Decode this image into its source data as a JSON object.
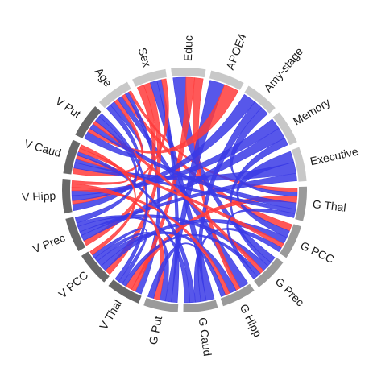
{
  "colors": {
    "positive": "#ff3b3b",
    "negative": "#3a3ae6",
    "group_demographic": "#c8c8c8",
    "group_gray_matter": "#9a9a9a",
    "group_volume": "#686868"
  },
  "sectors": [
    {
      "id": "apoe4",
      "label": "APOE4",
      "group": "demographic"
    },
    {
      "id": "amy",
      "label": "Amy-stage",
      "group": "demographic"
    },
    {
      "id": "memory",
      "label": "Memory",
      "group": "demographic"
    },
    {
      "id": "executive",
      "label": "Executive",
      "group": "demographic"
    },
    {
      "id": "gthal",
      "label": "G Thal",
      "group": "gray_matter"
    },
    {
      "id": "gpcc",
      "label": "G PCC",
      "group": "gray_matter"
    },
    {
      "id": "gprec",
      "label": "G Prec",
      "group": "gray_matter"
    },
    {
      "id": "ghipp",
      "label": "G Hipp",
      "group": "gray_matter"
    },
    {
      "id": "gcaud",
      "label": "G Caud",
      "group": "gray_matter"
    },
    {
      "id": "gput",
      "label": "G Put",
      "group": "gray_matter"
    },
    {
      "id": "vthal",
      "label": "V Thal",
      "group": "volume"
    },
    {
      "id": "vpcc",
      "label": "V PCC",
      "group": "volume"
    },
    {
      "id": "vprec",
      "label": "V Prec",
      "group": "volume"
    },
    {
      "id": "vhipp",
      "label": "V Hipp",
      "group": "volume"
    },
    {
      "id": "vcaud",
      "label": "V Caud",
      "group": "volume"
    },
    {
      "id": "vput",
      "label": "V Put",
      "group": "volume"
    },
    {
      "id": "age",
      "label": "Age",
      "group": "demographic"
    },
    {
      "id": "sex",
      "label": "Sex",
      "group": "demographic"
    },
    {
      "id": "educ",
      "label": "Educ",
      "group": "demographic"
    }
  ],
  "links": [
    {
      "from": "age",
      "to": "vhipp",
      "sign": "negative",
      "weight": 4
    },
    {
      "from": "age",
      "to": "vput",
      "sign": "negative",
      "weight": 4
    },
    {
      "from": "age",
      "to": "vcaud",
      "sign": "positive",
      "weight": 3
    },
    {
      "from": "age",
      "to": "ghipp",
      "sign": "negative",
      "weight": 4
    },
    {
      "from": "age",
      "to": "gpcc",
      "sign": "positive",
      "weight": 3
    },
    {
      "from": "age",
      "to": "vthal",
      "sign": "negative",
      "weight": 3
    },
    {
      "from": "age",
      "to": "gthal",
      "sign": "positive",
      "weight": 2
    },
    {
      "from": "sex",
      "to": "vprec",
      "sign": "positive",
      "weight": 3
    },
    {
      "from": "sex",
      "to": "vpcc",
      "sign": "positive",
      "weight": 3
    },
    {
      "from": "sex",
      "to": "gcaud",
      "sign": "negative",
      "weight": 3
    },
    {
      "from": "sex",
      "to": "gput",
      "sign": "negative",
      "weight": 2
    },
    {
      "from": "sex",
      "to": "vhipp",
      "sign": "positive",
      "weight": 2
    },
    {
      "from": "educ",
      "to": "gprec",
      "sign": "negative",
      "weight": 3
    },
    {
      "from": "educ",
      "to": "vthal",
      "sign": "positive",
      "weight": 2
    },
    {
      "from": "educ",
      "to": "ghipp",
      "sign": "positive",
      "weight": 2
    },
    {
      "from": "apoe4",
      "to": "gput",
      "sign": "negative",
      "weight": 2
    },
    {
      "from": "apoe4",
      "to": "vput",
      "sign": "positive",
      "weight": 2
    },
    {
      "from": "amy",
      "to": "vhipp",
      "sign": "negative",
      "weight": 3
    },
    {
      "from": "amy",
      "to": "gcaud",
      "sign": "negative",
      "weight": 2
    },
    {
      "from": "amy",
      "to": "gthal",
      "sign": "negative",
      "weight": 2
    },
    {
      "from": "memory",
      "to": "vhipp",
      "sign": "negative",
      "weight": 3
    },
    {
      "from": "memory",
      "to": "vprec",
      "sign": "negative",
      "weight": 3
    },
    {
      "from": "memory",
      "to": "gprec",
      "sign": "negative",
      "weight": 2
    },
    {
      "from": "executive",
      "to": "gpcc",
      "sign": "negative",
      "weight": 3
    },
    {
      "from": "executive",
      "to": "vcaud",
      "sign": "negative",
      "weight": 3
    },
    {
      "from": "executive",
      "to": "vprec",
      "sign": "negative",
      "weight": 2
    },
    {
      "from": "gthal",
      "to": "vthal",
      "sign": "positive",
      "weight": 3
    },
    {
      "from": "gthal",
      "to": "vput",
      "sign": "negative",
      "weight": 3
    },
    {
      "from": "gthal",
      "to": "vcaud",
      "sign": "negative",
      "weight": 2
    },
    {
      "from": "gpcc",
      "to": "vpcc",
      "sign": "negative",
      "weight": 3
    },
    {
      "from": "gpcc",
      "to": "vcaud",
      "sign": "positive",
      "weight": 2
    },
    {
      "from": "gpcc",
      "to": "gcaud",
      "sign": "negative",
      "weight": 2
    },
    {
      "from": "gprec",
      "to": "vprec",
      "sign": "negative",
      "weight": 3
    },
    {
      "from": "gprec",
      "to": "vput",
      "sign": "positive",
      "weight": 2
    },
    {
      "from": "gprec",
      "to": "vthal",
      "sign": "negative",
      "weight": 2
    },
    {
      "from": "ghipp",
      "to": "vpcc",
      "sign": "negative",
      "weight": 3
    },
    {
      "from": "ghipp",
      "to": "vhipp",
      "sign": "positive",
      "weight": 2
    },
    {
      "from": "gcaud",
      "to": "vcaud",
      "sign": "negative",
      "weight": 2
    },
    {
      "from": "gcaud",
      "to": "vprec",
      "sign": "negative",
      "weight": 2
    },
    {
      "from": "gput",
      "to": "vpcc",
      "sign": "negative",
      "weight": 2
    },
    {
      "from": "gput",
      "to": "vhipp",
      "sign": "positive",
      "weight": 2
    },
    {
      "from": "vput",
      "to": "vprec",
      "sign": "negative",
      "weight": 3
    },
    {
      "from": "vcaud",
      "to": "vhipp",
      "sign": "positive",
      "weight": 2
    },
    {
      "from": "vthal",
      "to": "vpcc",
      "sign": "negative",
      "weight": 2
    },
    {
      "from": "vput",
      "to": "vthal",
      "sign": "negative",
      "weight": 2
    },
    {
      "from": "vcaud",
      "to": "vpcc",
      "sign": "positive",
      "weight": 2
    },
    {
      "from": "gthal",
      "to": "gprec",
      "sign": "negative",
      "weight": 2
    },
    {
      "from": "ghipp",
      "to": "gput",
      "sign": "negative",
      "weight": 2
    }
  ]
}
